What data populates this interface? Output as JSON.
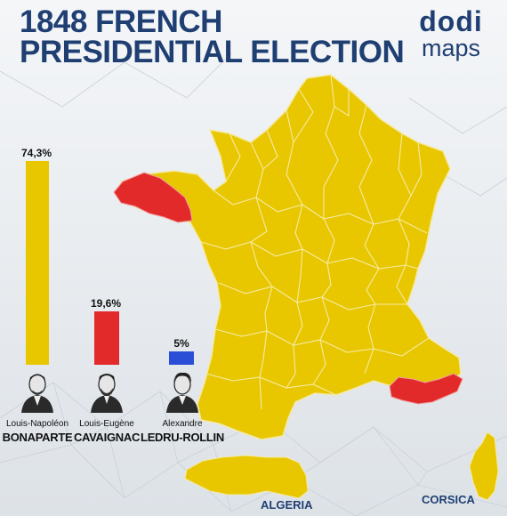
{
  "title": {
    "line1": "1848 FRENCH",
    "line2": "PRESIDENTIAL ELECTION"
  },
  "logo": {
    "line1": "dodi",
    "line2": "maps"
  },
  "candidates": [
    {
      "percent_label": "74,3%",
      "share": 74.3,
      "first_name": "Louis-Napoléon",
      "last_name": "BONAPARTE",
      "color": "#e8c700"
    },
    {
      "percent_label": "19,6%",
      "share": 19.6,
      "first_name": "Louis-Eugène",
      "last_name": "CAVAIGNAC",
      "color": "#e32a2a"
    },
    {
      "percent_label": "5%",
      "share": 5,
      "first_name": "Alexandre",
      "last_name": "LEDRU-ROLLIN",
      "color": "#2a4fd6"
    }
  ],
  "map": {
    "regions": [
      {
        "label": "ALGERIA"
      },
      {
        "label": "CORSICA"
      }
    ],
    "colors": {
      "bonaparte": "#e8c700",
      "cavaignac": "#e32a2a",
      "borders": "#f4e9a0"
    }
  }
}
